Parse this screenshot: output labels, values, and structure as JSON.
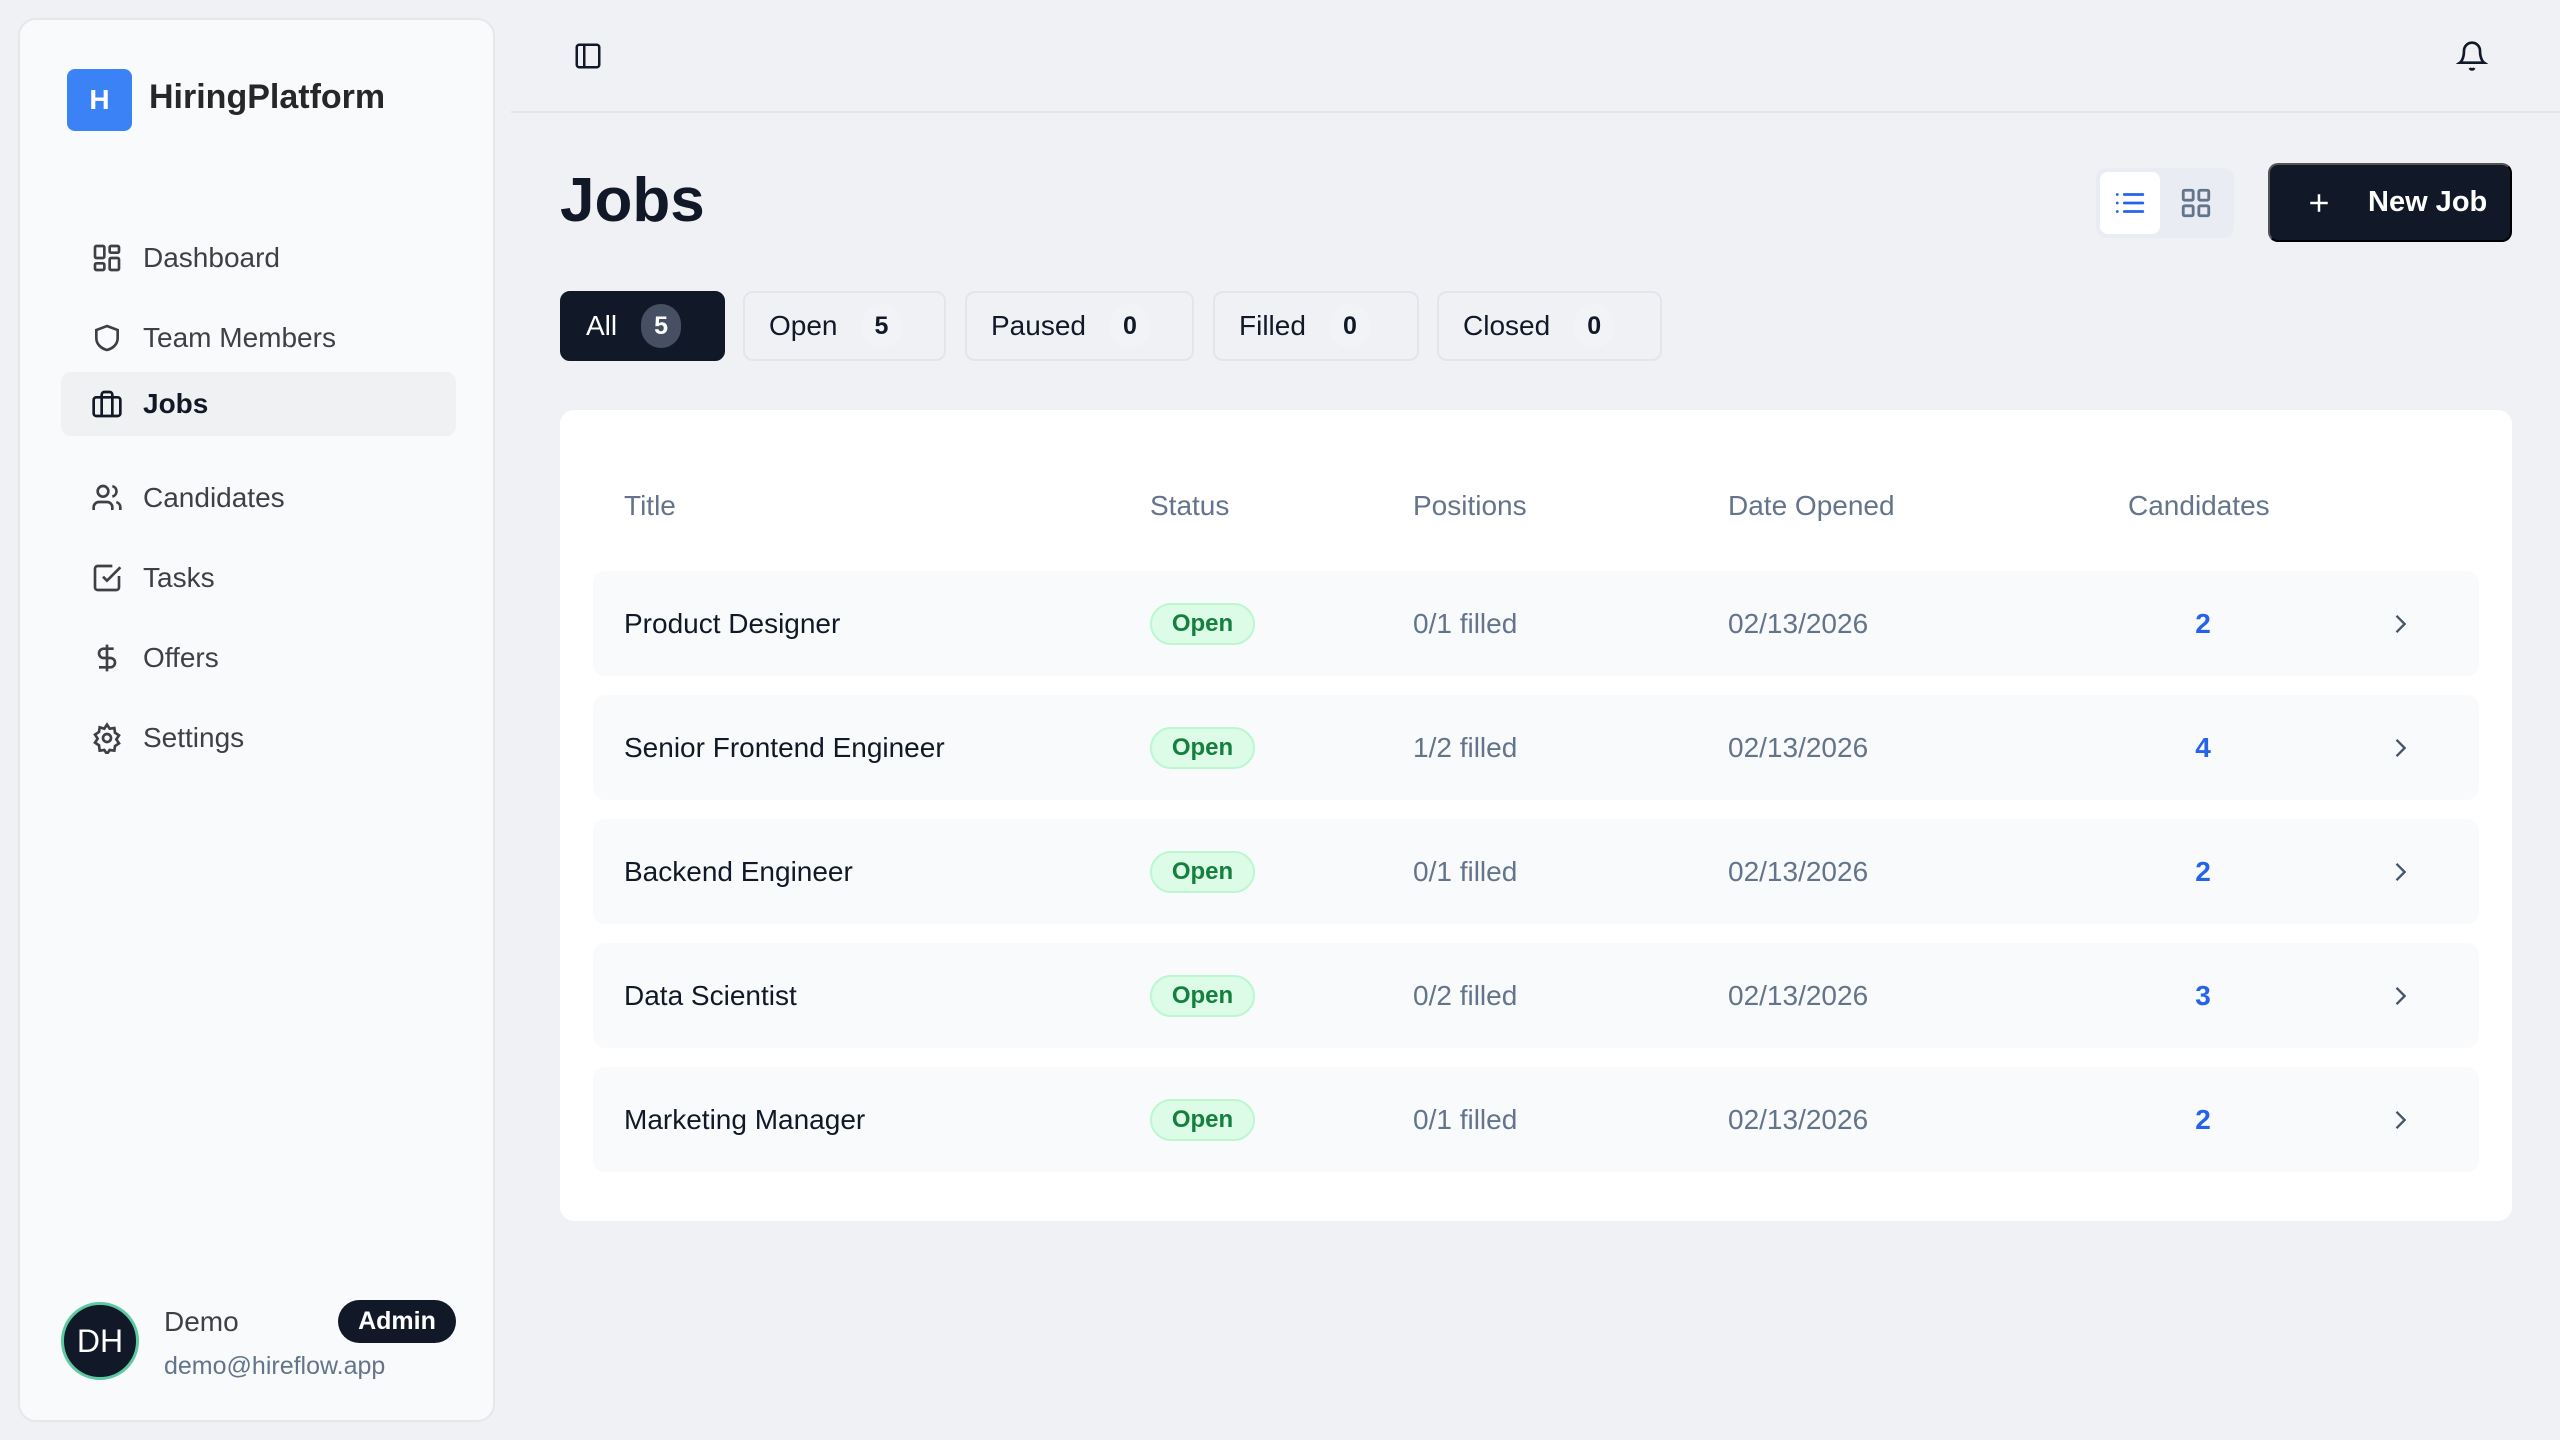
{
  "app": {
    "logo_letter": "H",
    "name": "HiringPlatform"
  },
  "sidebar": {
    "items": [
      {
        "label": "Dashboard",
        "icon": "dashboard-icon"
      },
      {
        "label": "Team Members",
        "icon": "shield-icon"
      },
      {
        "label": "Jobs",
        "icon": "briefcase-icon",
        "active": true
      },
      {
        "label": "Candidates",
        "icon": "users-icon"
      },
      {
        "label": "Tasks",
        "icon": "checkbox-icon"
      },
      {
        "label": "Offers",
        "icon": "dollar-icon"
      },
      {
        "label": "Settings",
        "icon": "gear-icon"
      }
    ]
  },
  "user": {
    "initials": "DH",
    "name": "Demo",
    "email": "demo@hireflow.app",
    "role": "Admin"
  },
  "page": {
    "title": "Jobs",
    "new_job_label": "New Job",
    "view": "list"
  },
  "filters": [
    {
      "label": "All",
      "count": "5",
      "active": true
    },
    {
      "label": "Open",
      "count": "5"
    },
    {
      "label": "Paused",
      "count": "0"
    },
    {
      "label": "Filled",
      "count": "0"
    },
    {
      "label": "Closed",
      "count": "0"
    }
  ],
  "table": {
    "columns": [
      "Title",
      "Status",
      "Positions",
      "Date Opened",
      "Candidates"
    ],
    "rows": [
      {
        "title": "Product Designer",
        "status": "Open",
        "positions": "0/1 filled",
        "date": "02/13/2026",
        "candidates": "2"
      },
      {
        "title": "Senior Frontend Engineer",
        "status": "Open",
        "positions": "1/2 filled",
        "date": "02/13/2026",
        "candidates": "4"
      },
      {
        "title": "Backend Engineer",
        "status": "Open",
        "positions": "0/1 filled",
        "date": "02/13/2026",
        "candidates": "2"
      },
      {
        "title": "Data Scientist",
        "status": "Open",
        "positions": "0/2 filled",
        "date": "02/13/2026",
        "candidates": "3"
      },
      {
        "title": "Marketing Manager",
        "status": "Open",
        "positions": "0/1 filled",
        "date": "02/13/2026",
        "candidates": "2"
      }
    ]
  },
  "colors": {
    "brand": "#3b82f6",
    "primary": "#111827",
    "open_badge": "#15803d",
    "link": "#2563eb"
  }
}
